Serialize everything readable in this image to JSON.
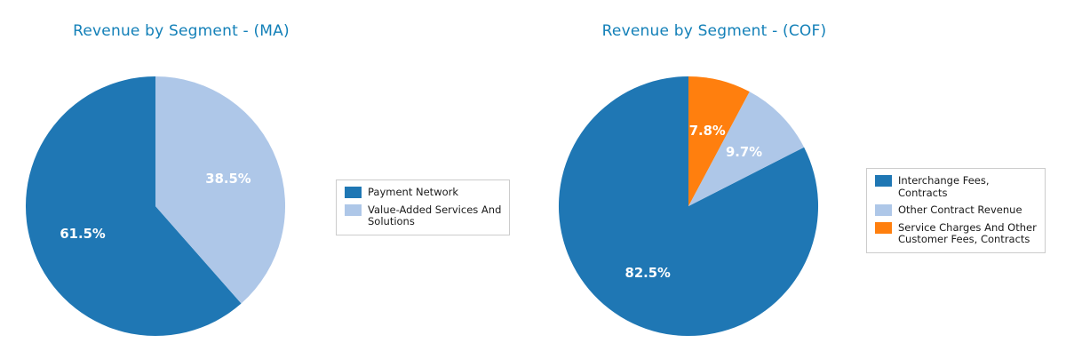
{
  "styles": {
    "background": "#ffffff",
    "title_color": "#1380b8",
    "slice_label_color": "#ffffff",
    "legend_border": "#cccccc",
    "legend_text_color": "#1a1a1a"
  },
  "chart_data": [
    {
      "type": "pie",
      "title": "Revenue by Segment - (MA)",
      "labels": [
        "Payment Network",
        "Value-Added Services And\nSolutions"
      ],
      "values": [
        61.5,
        38.5
      ],
      "value_labels": [
        "61.5%",
        "38.5%"
      ],
      "colors": [
        "#1f77b4",
        "#aec7e8"
      ],
      "start_angle": 90,
      "counterclockwise": true,
      "legend_position": "right",
      "label_radius_fraction": 0.6
    },
    {
      "type": "pie",
      "title": "Revenue by Segment - (COF)",
      "labels": [
        "Interchange Fees,\nContracts",
        "Other Contract Revenue",
        "Service Charges And Other\nCustomer Fees, Contracts"
      ],
      "values": [
        82.5,
        9.7,
        7.8
      ],
      "value_labels": [
        "82.5%",
        "9.7%",
        "7.8%"
      ],
      "colors": [
        "#1f77b4",
        "#aec7e8",
        "#ff7f0e"
      ],
      "start_angle": 90,
      "counterclockwise": true,
      "legend_position": "right",
      "label_radius_fraction": 0.6
    }
  ]
}
